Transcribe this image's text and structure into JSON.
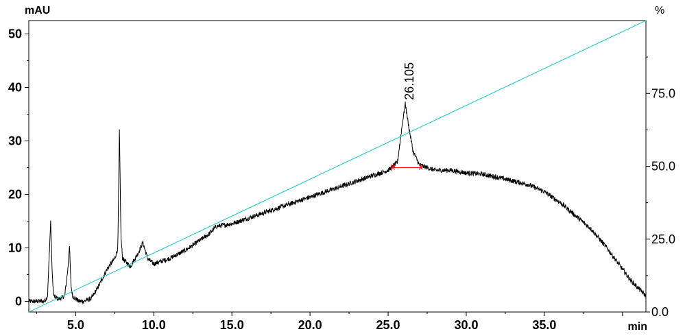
{
  "chart_data": {
    "type": "line",
    "title": "",
    "xlabel": "",
    "ylabel": "",
    "x_unit": "min",
    "y_unit_left": "mAU",
    "y_unit_right": "%",
    "xlim": [
      2.0,
      41.5
    ],
    "ylim_left": [
      -2.0,
      52.5
    ],
    "ylim_right": [
      0,
      100
    ],
    "x_ticks": [
      5.0,
      10.0,
      15.0,
      20.0,
      25.0,
      30.0,
      35.0
    ],
    "x_tick_labels": [
      "5.0",
      "10.0",
      "15.0",
      "20.0",
      "25.0",
      "30.0",
      "35.0"
    ],
    "y_ticks_left": [
      0,
      10,
      20,
      30,
      40,
      50
    ],
    "y_tick_labels_left": [
      "0",
      "10",
      "20",
      "30",
      "40",
      "50"
    ],
    "y_ticks_right": [
      0,
      25,
      50,
      75
    ],
    "y_tick_labels_right": [
      "0.0",
      "25.0",
      "50.0",
      "75.0"
    ],
    "series": [
      {
        "axis": "left",
        "color": "#000000",
        "x": [
          2.0,
          3.0,
          3.2,
          3.4,
          3.5,
          3.6,
          3.8,
          4.0,
          4.3,
          4.5,
          4.6,
          4.7,
          4.8,
          5.0,
          5.2,
          5.5,
          6.0,
          6.5,
          7.0,
          7.5,
          7.7,
          7.8,
          7.9,
          8.0,
          8.5,
          9.0,
          9.3,
          9.6,
          10.0,
          11.0,
          12.0,
          13.0,
          13.5,
          14.0,
          15.0,
          16.0,
          17.0,
          18.0,
          19.0,
          20.0,
          21.0,
          22.0,
          23.0,
          24.0,
          25.0,
          25.6,
          25.9,
          26.1,
          26.3,
          26.6,
          27.0,
          27.5,
          28.0,
          29.0,
          30.0,
          31.0,
          32.0,
          33.0,
          34.0,
          35.0,
          36.0,
          37.0,
          38.0,
          39.0,
          40.0,
          40.5,
          41.0,
          41.5
        ],
        "values": [
          0.0,
          0.0,
          1.0,
          15.0,
          5.0,
          1.0,
          0.5,
          0.5,
          1.0,
          6.0,
          10.5,
          3.0,
          1.0,
          0.5,
          0.0,
          0.0,
          0.5,
          3.0,
          6.0,
          8.0,
          10.0,
          32.0,
          12.0,
          8.0,
          6.5,
          9.0,
          11.0,
          8.0,
          7.0,
          8.0,
          9.5,
          11.5,
          12.5,
          14.0,
          14.5,
          15.5,
          16.5,
          17.5,
          18.5,
          19.5,
          20.5,
          21.5,
          22.5,
          23.5,
          24.5,
          26.0,
          33.0,
          37.0,
          33.0,
          28.0,
          25.5,
          25.0,
          24.5,
          24.5,
          24.0,
          23.8,
          23.2,
          22.5,
          21.8,
          20.5,
          18.5,
          16.0,
          13.5,
          10.0,
          6.0,
          4.0,
          2.5,
          1.0
        ]
      },
      {
        "axis": "right",
        "color": "#33cccc",
        "x": [
          2.0,
          41.5
        ],
        "values": [
          0.0,
          100.0
        ]
      }
    ],
    "annotations": [
      {
        "label": "26.105",
        "x": 26.105,
        "y": 37.0,
        "baseline_color": "#ff0000",
        "baseline_x": [
          25.2,
          27.2
        ],
        "baseline_y": [
          25.0,
          25.0
        ]
      }
    ],
    "grid": false,
    "legend": "none"
  }
}
